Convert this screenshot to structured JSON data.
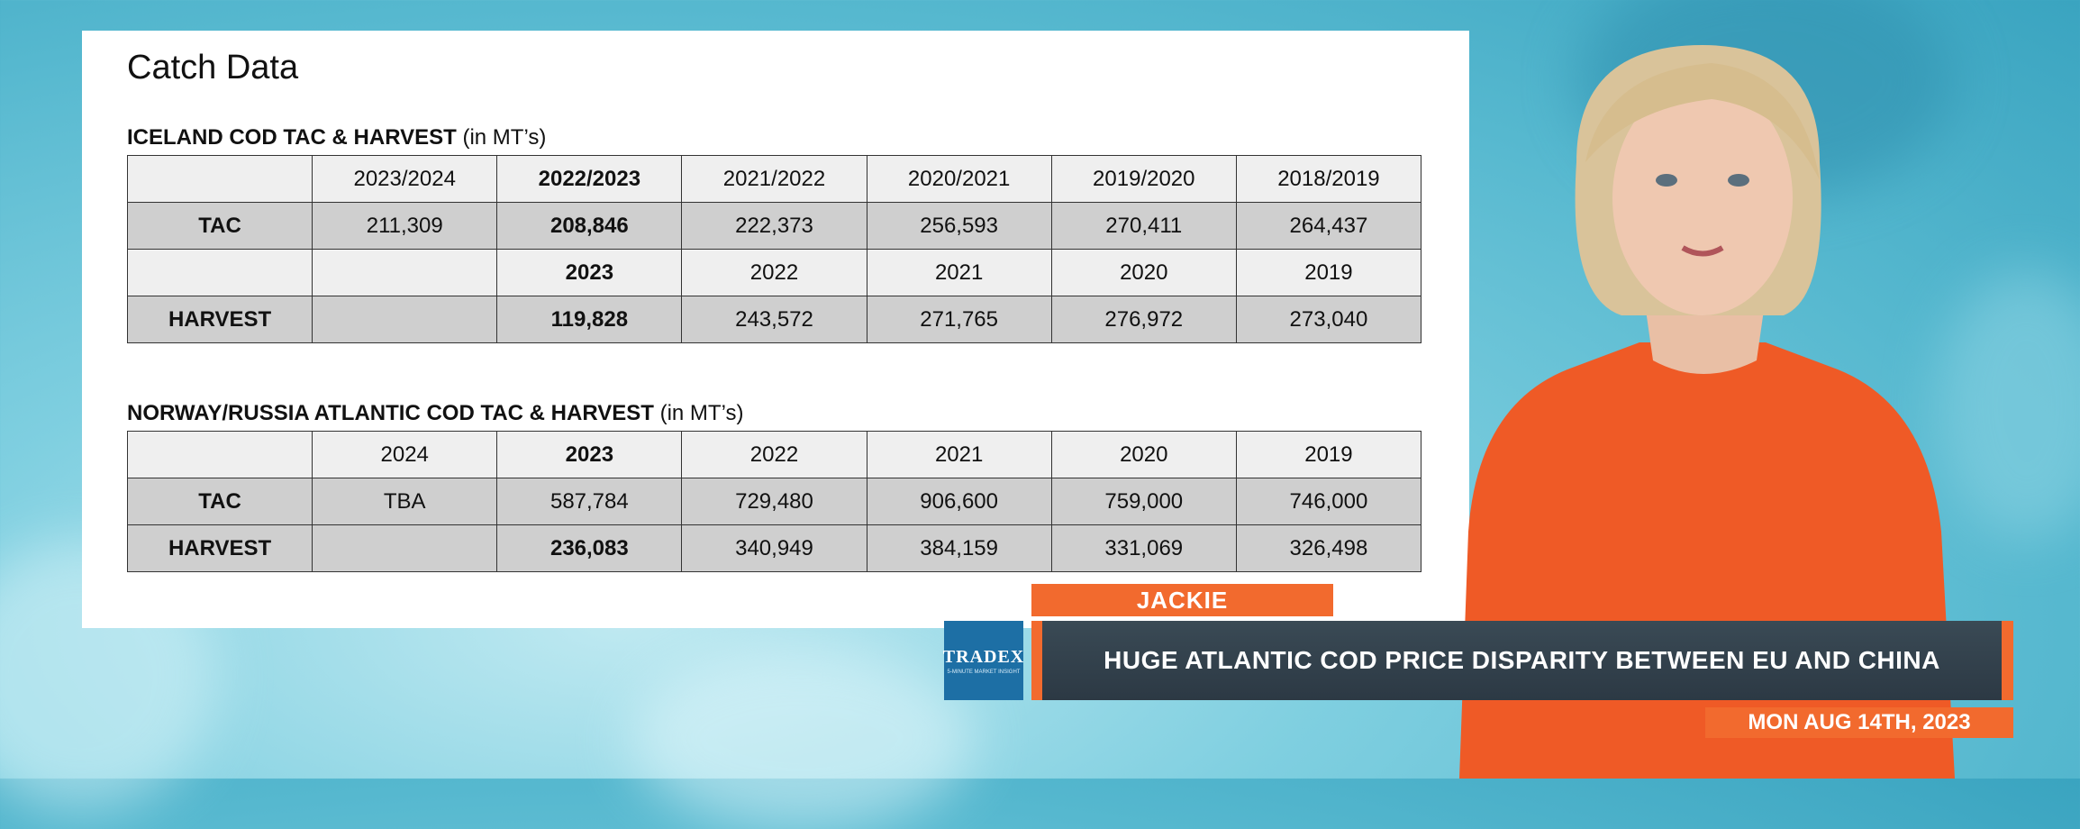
{
  "panel": {
    "title": "Catch Data"
  },
  "iceland": {
    "caption_bold": "ICELAND COD TAC & HARVEST",
    "caption_rest": " (in MT’s)",
    "rows": [
      [
        "",
        "2023/2024",
        "2022/2023",
        "2021/2022",
        "2020/2021",
        "2019/2020",
        "2018/2019"
      ],
      [
        "TAC",
        "211,309",
        "208,846",
        "222,373",
        "256,593",
        "270,411",
        "264,437"
      ],
      [
        "",
        "",
        "2023",
        "2022",
        "2021",
        "2020",
        "2019"
      ],
      [
        "HARVEST",
        "",
        "119,828",
        "243,572",
        "271,765",
        "276,972",
        "273,040"
      ]
    ]
  },
  "norway": {
    "caption_bold": "NORWAY/RUSSIA ATLANTIC COD TAC & HARVEST",
    "caption_rest": " (in MT’s)",
    "rows": [
      [
        "",
        "2024",
        "2023",
        "2022",
        "2021",
        "2020",
        "2019"
      ],
      [
        "TAC",
        "TBA",
        "587,784",
        "729,480",
        "906,600",
        "759,000",
        "746,000"
      ],
      [
        "HARVEST",
        "",
        "236,083",
        "340,949",
        "384,159",
        "331,069",
        "326,498"
      ]
    ]
  },
  "lower_third": {
    "name": "JACKIE",
    "headline": "HUGE ATLANTIC COD PRICE DISPARITY BETWEEN EU AND CHINA",
    "date": "MON AUG 14TH, 2023",
    "logo_text": "TRADEX",
    "logo_sub": "5-MINUTE MARKET INSIGHT"
  },
  "colors": {
    "accent": "#f26a2e",
    "headline_bg": "#2f3c47",
    "logo_bg": "#1d6fa5"
  }
}
